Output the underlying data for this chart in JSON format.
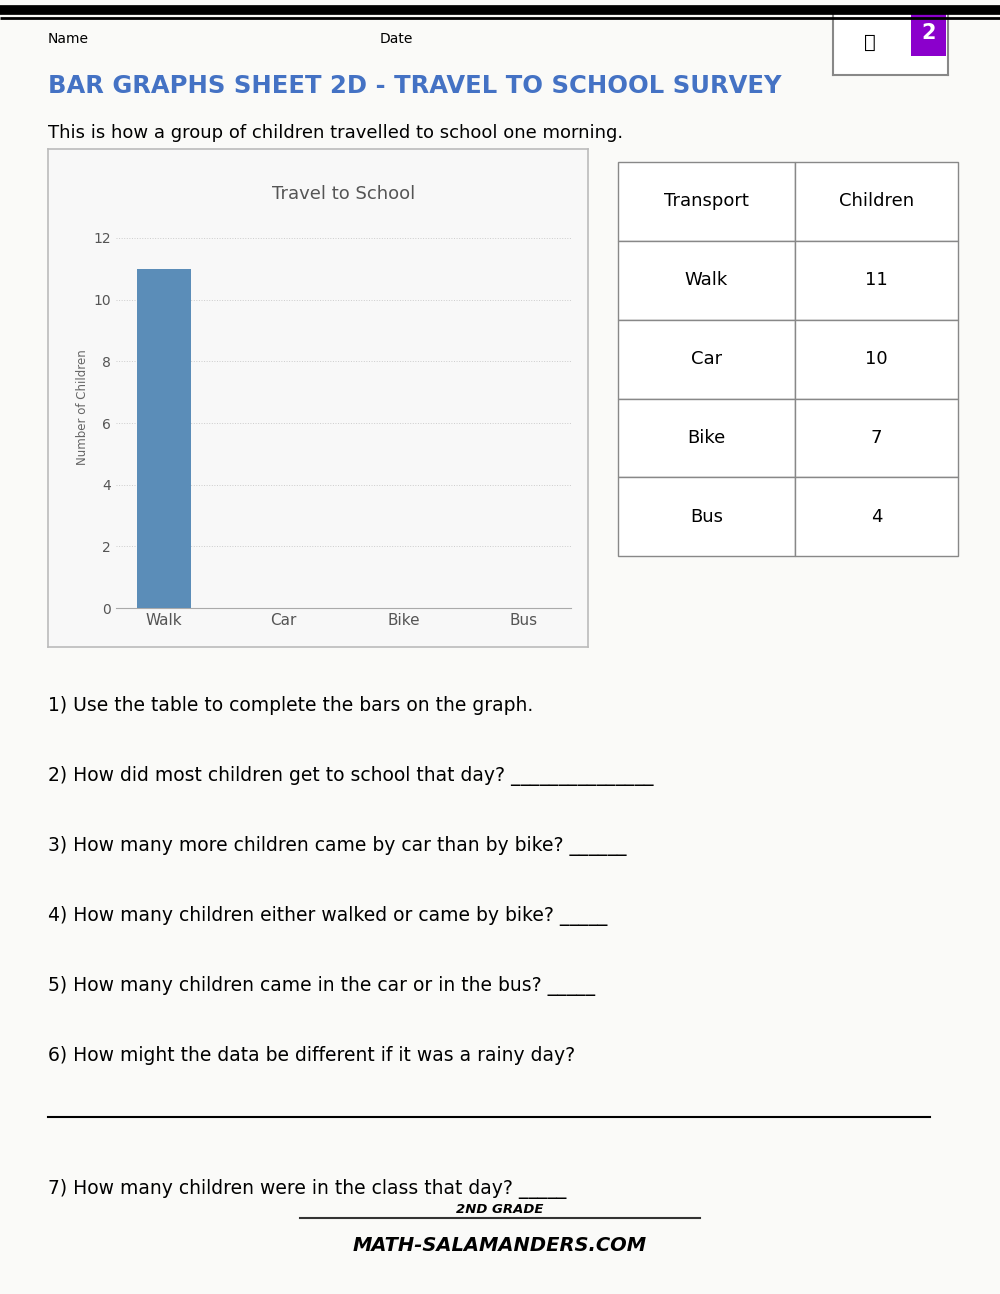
{
  "title": "BAR GRAPHS SHEET 2D - TRAVEL TO SCHOOL SURVEY",
  "subtitle": "This is how a group of children travelled to school one morning.",
  "name_label": "Name",
  "date_label": "Date",
  "chart_title": "Travel to School",
  "categories": [
    "Walk",
    "Car",
    "Bike",
    "Bus"
  ],
  "values": [
    11,
    0,
    0,
    0
  ],
  "bar_color": "#5B8DB8",
  "ylabel": "Number of Children",
  "ylim": [
    0,
    13
  ],
  "yticks": [
    0,
    2,
    4,
    6,
    8,
    10,
    12
  ],
  "table_headers": [
    "Transport",
    "Children"
  ],
  "table_data": [
    [
      "Walk",
      "11"
    ],
    [
      "Car",
      "10"
    ],
    [
      "Bike",
      "7"
    ],
    [
      "Bus",
      "4"
    ]
  ],
  "questions": [
    "1) Use the table to complete the bars on the graph.",
    "2) How did most children get to school that day? _______________",
    "3) How many more children came by car than by bike? ______",
    "4) How many children either walked or came by bike? _____",
    "5) How many children came in the car or in the bus? _____",
    "6) How might the data be different if it was a rainy day?"
  ],
  "question7": "7) How many children were in the class that day? _____",
  "title_color": "#4472C4",
  "bg_color": "#FAFAF8",
  "chart_bg": "#F8F8F8",
  "grid_color": "#CCCCCC",
  "chart_border_color": "#BBBBBB",
  "table_border_color": "#888888",
  "icon_border_color": "#888888",
  "purple_color": "#8B00CC",
  "footer_line_color": "#333333"
}
